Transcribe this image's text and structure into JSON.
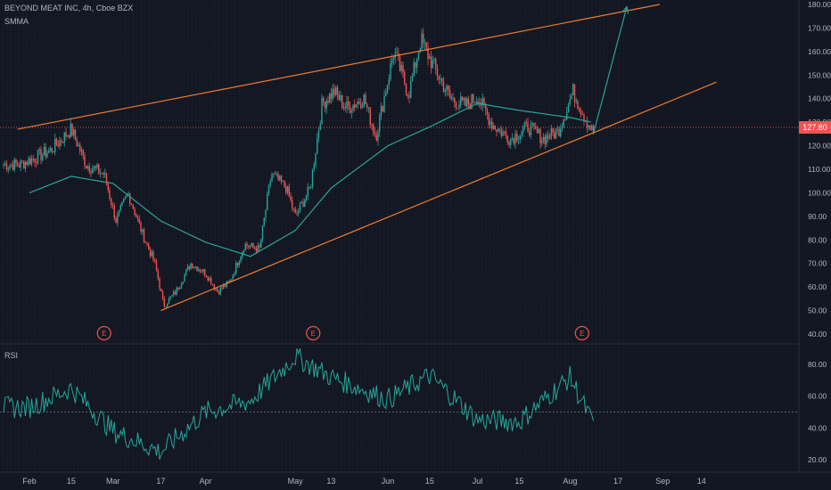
{
  "header": {
    "title": "BEYOND MEAT INC, 4h, Cboe BZX",
    "indicator": "SMMA",
    "rsi_label": "RSI",
    "last_price": "127.80"
  },
  "colors": {
    "background": "#131722",
    "up": "#26a69a",
    "down": "#ef5350",
    "smma": "#26a69a",
    "channel": "#f07c32",
    "rsi": "#26a69a",
    "price_line": "#ef5350",
    "earnings": "#f05350"
  },
  "chart_data": [
    {
      "type": "line",
      "series": [
        {
          "name": "SMMA",
          "x": [
            "Feb 1",
            "Feb 15",
            "Mar 1",
            "Mar 17",
            "Apr 1",
            "Apr 16",
            "May 1",
            "May 13",
            "Jun 1",
            "Jun 15",
            "Jul 1",
            "Jul 15",
            "Aug 1",
            "Aug 8"
          ],
          "y": [
            100,
            107,
            104,
            88,
            79,
            73,
            84,
            102,
            120,
            128,
            138,
            135,
            132,
            130
          ]
        },
        {
          "name": "",
          "x": [
            "Feb 1",
            "Jan 29",
            "Feb 8",
            "Feb 15",
            "Feb 20",
            "Feb 26",
            "Mar 2",
            "Mar 6",
            "Mar 11",
            "Mar 15",
            "Mar 18",
            "Mar 22",
            "Mar 27",
            "Apr 1",
            "Apr 5",
            "Apr 9",
            "Apr 14",
            "Apr 19",
            "Apr 23",
            "Apr 28",
            "May 1",
            "May 6",
            "May 10",
            "May 14",
            "May 18",
            "May 24",
            "May 28",
            "Jun 3",
            "Jun 8",
            "Jun 12",
            "Jun 17",
            "Jun 22",
            "Jun 27",
            "Jul 1",
            "Jul 6",
            "Jul 12",
            "Jul 18",
            "Jul 23",
            "Jul 28",
            "Aug 2",
            "Aug 6",
            "Aug 9"
          ],
          "y": [
            122,
            112,
            118,
            127,
            112,
            108,
            88,
            100,
            82,
            70,
            52,
            58,
            70,
            66,
            58,
            62,
            78,
            76,
            108,
            102,
            90,
            102,
            138,
            143,
            136,
            140,
            124,
            160,
            142,
            165,
            152,
            140,
            137,
            141,
            129,
            123,
            128,
            123,
            126,
            143,
            132,
            125
          ]
        }
      ],
      "channel_lines": {
        "upper": {
          "from": [
            "Jan 28",
            127
          ],
          "to": [
            "Aug 31",
            180
          ]
        },
        "lower": {
          "from": [
            "Mar 17",
            50
          ],
          "to": [
            "Sep 19",
            147
          ]
        }
      },
      "projection_arrow": {
        "from": [
          "Aug 9",
          126
        ],
        "to": [
          "Aug 20",
          179
        ]
      },
      "horizontal_line": 127.8,
      "earnings": {
        "label": "E",
        "dates": [
          "Feb 26",
          "May 7",
          "Aug 5"
        ]
      },
      "y_ticks": [
        "40.00",
        "50.00",
        "60.00",
        "70.00",
        "80.00",
        "90.00",
        "100.00",
        "110.00",
        "120.00",
        "130.00",
        "140.00",
        "150.00",
        "160.00",
        "170.00",
        "180.00"
      ],
      "ylim": [
        38,
        183
      ],
      "x_ticks": [
        "Feb",
        "15",
        "Mar",
        "17",
        "Apr",
        "May",
        "13",
        "Jun",
        "15",
        "Jul",
        "15",
        "Aug",
        "17",
        "Sep",
        "14"
      ],
      "grid": true
    },
    {
      "type": "line",
      "series": [
        {
          "name": "RSI",
          "x": [
            "Feb 1",
            "Feb 15",
            "Mar 1",
            "Mar 17",
            "Apr 1",
            "Apr 16",
            "May 1",
            "May 13",
            "Jun 1",
            "Jun 15",
            "Jul 1",
            "Jul 15",
            "Aug 1",
            "Aug 8"
          ],
          "y": [
            53,
            65,
            38,
            25,
            50,
            57,
            85,
            72,
            58,
            73,
            45,
            44,
            72,
            45
          ]
        }
      ],
      "reference_line": 50,
      "y_ticks": [
        "20.00",
        "40.00",
        "60.00",
        "80.00"
      ],
      "ylim": [
        17,
        90
      ]
    }
  ]
}
